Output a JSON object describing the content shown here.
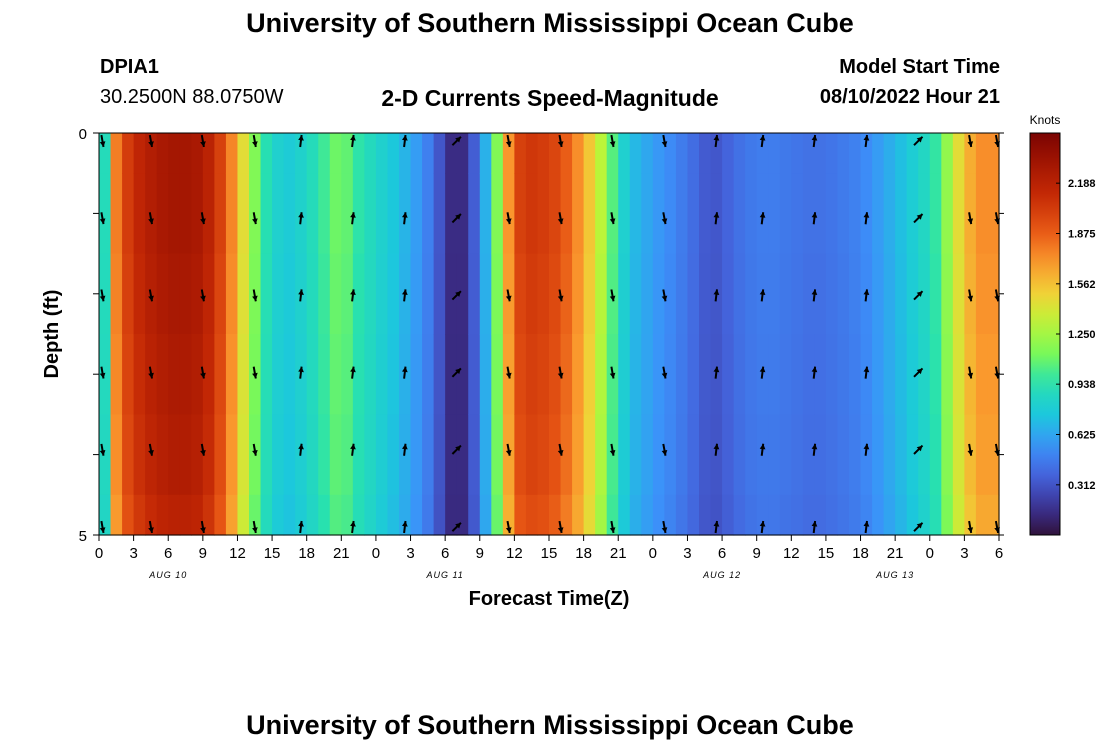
{
  "page": {
    "title_top": "University of Southern Mississippi Ocean Cube",
    "title_bottom": "University of Southern Mississippi Ocean Cube",
    "station_id": "DPIA1",
    "station_coords": "30.2500N  88.0750W",
    "product_name": "2-D Currents Speed-Magnitude",
    "model_start_label": "Model Start Time",
    "model_start_value": "08/10/2022 Hour 21"
  },
  "chart_data": {
    "type": "heatmap",
    "xlabel": "Forecast Time(Z)",
    "ylabel": "Depth (ft)",
    "x_ticks": [
      "0",
      "3",
      "6",
      "9",
      "12",
      "15",
      "18",
      "21",
      "0",
      "3",
      "6",
      "9",
      "12",
      "15",
      "18",
      "21",
      "0",
      "3",
      "6",
      "9",
      "12",
      "15",
      "18",
      "21",
      "0",
      "3",
      "6"
    ],
    "date_labels": [
      {
        "label": "AUG 10",
        "hour_index": 6
      },
      {
        "label": "AUG 11",
        "hour_index": 30
      },
      {
        "label": "AUG 12",
        "hour_index": 54
      },
      {
        "label": "AUG 13",
        "hour_index": 69
      }
    ],
    "x_range_hours": [
      0,
      78
    ],
    "y_range_ft": [
      0,
      5
    ],
    "y_ticks": [
      "0",
      "5"
    ],
    "colorbar": {
      "unit": "Knots",
      "min": 0.0,
      "max": 2.5,
      "tick_values": [
        0.312,
        0.625,
        0.938,
        1.25,
        1.562,
        1.875,
        2.188
      ],
      "tick_labels": [
        "0.312",
        "0.625",
        "0.938",
        "1.250",
        "1.562",
        "1.875",
        "2.188"
      ]
    },
    "speed_profile": {
      "hours": [
        0,
        0.5,
        1,
        2,
        3,
        4,
        5,
        6,
        8,
        9,
        10,
        11,
        12,
        13,
        14,
        16,
        18,
        20,
        21,
        22,
        24,
        26,
        28,
        29,
        30,
        31,
        32,
        33,
        34,
        35,
        36,
        37,
        38,
        40,
        42,
        44,
        45,
        46,
        48,
        50,
        52,
        53,
        54,
        56,
        58,
        60,
        62,
        64,
        66,
        68,
        70,
        72,
        73,
        74,
        75,
        76,
        77,
        78
      ],
      "knots": [
        0.45,
        0.9,
        1.6,
        1.95,
        2.1,
        2.2,
        2.25,
        2.3,
        2.3,
        2.25,
        2.1,
        1.9,
        1.6,
        1.3,
        1.0,
        0.75,
        0.85,
        1.05,
        1.15,
        1.0,
        0.85,
        0.72,
        0.55,
        0.42,
        0.22,
        0.06,
        0.22,
        0.48,
        0.85,
        1.45,
        1.95,
        2.05,
        2.05,
        1.95,
        1.65,
        1.2,
        0.9,
        0.72,
        0.6,
        0.5,
        0.38,
        0.3,
        0.35,
        0.45,
        0.48,
        0.45,
        0.42,
        0.45,
        0.5,
        0.62,
        0.75,
        0.9,
        1.05,
        1.35,
        1.55,
        1.7,
        1.75,
        1.7
      ],
      "depth_factor": [
        1.0,
        1.0,
        0.99,
        0.98,
        0.97,
        0.95
      ]
    },
    "vector_columns_hours": [
      0.3,
      4.5,
      9,
      13.5,
      17.5,
      22,
      26.5,
      31,
      35.5,
      40,
      44.5,
      49,
      53.5,
      57.5,
      62,
      66.5,
      71,
      75.5,
      78.5
    ],
    "vector_rows": 6,
    "vector_directions": {
      "down_hours": [
        [
          0,
          14.5
        ],
        [
          34,
          49.5
        ],
        [
          74,
          79
        ]
      ],
      "up_hours": [
        [
          14.5,
          30
        ],
        [
          51,
          74
        ]
      ],
      "up_right_hours": [
        [
          30,
          34
        ],
        [
          71,
          74
        ]
      ]
    }
  }
}
